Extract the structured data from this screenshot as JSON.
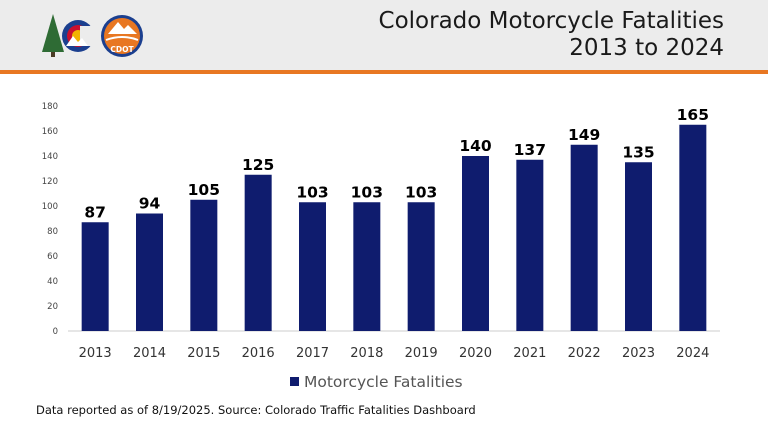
{
  "header": {
    "title_line1": "Colorado Motorcycle Fatalities",
    "title_line2": "2013 to 2024",
    "logos": [
      {
        "name": "colorado-state-logo",
        "mark": "C",
        "text": ""
      },
      {
        "name": "cdot-logo",
        "mark": "",
        "text": "CDOT"
      }
    ]
  },
  "colors": {
    "bar": "#0f1c6e",
    "header_bg": "#ececec",
    "header_rule": "#e87722",
    "logo_blue": "#1b3f8f",
    "logo_red": "#c8102e",
    "logo_gold": "#f2b400",
    "logo_green": "#2e6b34"
  },
  "chart_data": {
    "type": "bar",
    "categories": [
      "2013",
      "2014",
      "2015",
      "2016",
      "2017",
      "2018",
      "2019",
      "2020",
      "2021",
      "2022",
      "2023",
      "2024"
    ],
    "series": [
      {
        "name": "Motorcycle Fatalities",
        "values": [
          87,
          94,
          105,
          125,
          103,
          103,
          103,
          140,
          137,
          149,
          135,
          165
        ]
      }
    ],
    "data_labels": [
      "87",
      "94",
      "105",
      "125",
      "103",
      "103",
      "103",
      "140",
      "137",
      "149",
      "135",
      "165"
    ],
    "yticks": [
      0,
      20,
      40,
      60,
      80,
      100,
      120,
      140,
      160,
      180
    ],
    "ylim": [
      0,
      180
    ],
    "title": "",
    "xlabel": "",
    "ylabel": "",
    "grid": false,
    "legend": "bottom",
    "legend_label": "Motorcycle Fatalities"
  },
  "footnote": "Data reported as of 8/19/2025. Source: Colorado Traffic Fatalities Dashboard"
}
